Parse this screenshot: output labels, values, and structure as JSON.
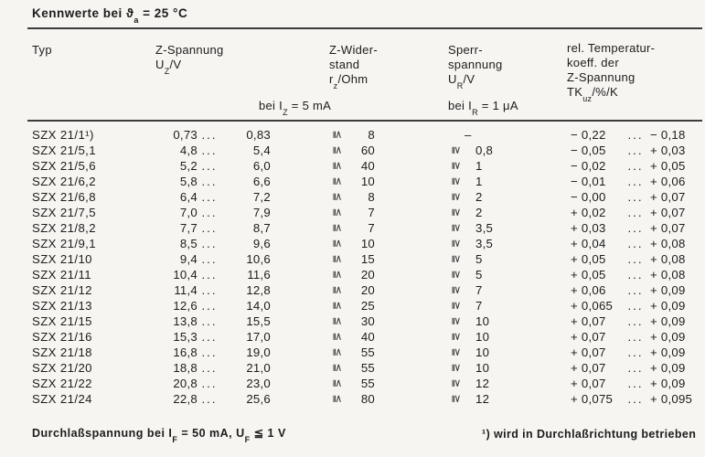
{
  "title": {
    "pre": "Kennwerte bei ϑ",
    "sub": "a",
    "post": " = 25 °C"
  },
  "header": {
    "typ_label": "Typ",
    "uz": {
      "name": "Z-Spannung",
      "sym": "U",
      "sub": "Z",
      "unit": "/V"
    },
    "uz_condition": {
      "pre": "bei I",
      "sub": "Z",
      "post": " = 5 mA"
    },
    "rz": {
      "name1": "Z-Wider-",
      "name2": "stand",
      "sym": "r",
      "sub": "z",
      "unit": "/Ohm"
    },
    "ur": {
      "name1": "Sperr-",
      "name2": "spannung",
      "sym": "U",
      "sub": "R",
      "unit": "/V"
    },
    "ur_condition": {
      "pre": "bei I",
      "sub": "R",
      "post": " = 1 μA"
    },
    "tk": {
      "name1": "rel. Temperatur-",
      "name2": "koeff. der",
      "name3": "Z-Spannung",
      "sym": "TK",
      "sub": "uz",
      "unit": "/%/K"
    }
  },
  "symbols": {
    "lte": "≦",
    "gte": "≧",
    "ellipsis": "...",
    "dash": "–"
  },
  "rows": [
    {
      "typ": "SZX 21/1¹)",
      "uz_min": "0,73",
      "uz_max": "0,83",
      "rz": "8",
      "ur": "–",
      "tk_min": "− 0,22",
      "tk_max": "− 0,18"
    },
    {
      "typ": "SZX 21/5,1",
      "uz_min": "4,8",
      "uz_max": "5,4",
      "rz": "60",
      "ur": "0,8",
      "tk_min": "− 0,05",
      "tk_max": "+ 0,03"
    },
    {
      "typ": "SZX 21/5,6",
      "uz_min": "5,2",
      "uz_max": "6,0",
      "rz": "40",
      "ur": "1",
      "tk_min": "− 0,02",
      "tk_max": "+ 0,05"
    },
    {
      "typ": "SZX 21/6,2",
      "uz_min": "5,8",
      "uz_max": "6,6",
      "rz": "10",
      "ur": "1",
      "tk_min": "− 0,01",
      "tk_max": "+ 0,06"
    },
    {
      "typ": "SZX 21/6,8",
      "uz_min": "6,4",
      "uz_max": "7,2",
      "rz": "8",
      "ur": "2",
      "tk_min": "− 0,00",
      "tk_max": "+ 0,07"
    },
    {
      "typ": "SZX 21/7,5",
      "uz_min": "7,0",
      "uz_max": "7,9",
      "rz": "7",
      "ur": "2",
      "tk_min": "+ 0,02",
      "tk_max": "+ 0,07"
    },
    {
      "typ": "SZX 21/8,2",
      "uz_min": "7,7",
      "uz_max": "8,7",
      "rz": "7",
      "ur": "3,5",
      "tk_min": "+ 0,03",
      "tk_max": "+ 0,07"
    },
    {
      "typ": "SZX 21/9,1",
      "uz_min": "8,5",
      "uz_max": "9,6",
      "rz": "10",
      "ur": "3,5",
      "tk_min": "+ 0,04",
      "tk_max": "+ 0,08"
    },
    {
      "typ": "SZX 21/10",
      "uz_min": "9,4",
      "uz_max": "10,6",
      "rz": "15",
      "ur": "5",
      "tk_min": "+ 0,05",
      "tk_max": "+ 0,08"
    },
    {
      "typ": "SZX 21/11",
      "uz_min": "10,4",
      "uz_max": "11,6",
      "rz": "20",
      "ur": "5",
      "tk_min": "+ 0,05",
      "tk_max": "+ 0,08"
    },
    {
      "typ": "SZX 21/12",
      "uz_min": "11,4",
      "uz_max": "12,8",
      "rz": "20",
      "ur": "7",
      "tk_min": "+ 0,06",
      "tk_max": "+ 0,09"
    },
    {
      "typ": "SZX 21/13",
      "uz_min": "12,6",
      "uz_max": "14,0",
      "rz": "25",
      "ur": "7",
      "tk_min": "+ 0,065",
      "tk_max": "+ 0,09"
    },
    {
      "typ": "SZX 21/15",
      "uz_min": "13,8",
      "uz_max": "15,5",
      "rz": "30",
      "ur": "10",
      "tk_min": "+ 0,07",
      "tk_max": "+ 0,09"
    },
    {
      "typ": "SZX 21/16",
      "uz_min": "15,3",
      "uz_max": "17,0",
      "rz": "40",
      "ur": "10",
      "tk_min": "+ 0,07",
      "tk_max": "+ 0,09"
    },
    {
      "typ": "SZX 21/18",
      "uz_min": "16,8",
      "uz_max": "19,0",
      "rz": "55",
      "ur": "10",
      "tk_min": "+ 0,07",
      "tk_max": "+ 0,09"
    },
    {
      "typ": "SZX 21/20",
      "uz_min": "18,8",
      "uz_max": "21,0",
      "rz": "55",
      "ur": "10",
      "tk_min": "+ 0,07",
      "tk_max": "+ 0,09"
    },
    {
      "typ": "SZX 21/22",
      "uz_min": "20,8",
      "uz_max": "23,0",
      "rz": "55",
      "ur": "12",
      "tk_min": "+ 0,07",
      "tk_max": "+ 0,09"
    },
    {
      "typ": "SZX 21/24",
      "uz_min": "22,8",
      "uz_max": "25,6",
      "rz": "80",
      "ur": "12",
      "tk_min": "+ 0,075",
      "tk_max": "+ 0,095"
    }
  ],
  "footer": {
    "left": {
      "pre": "Durchlaßspannung bei I",
      "sub1": "F",
      "mid": " = 50 mA,  U",
      "sub2": "F",
      "post": " ≦ 1 V"
    },
    "footnote": "¹) wird in Durchlaßrichtung betrieben"
  }
}
